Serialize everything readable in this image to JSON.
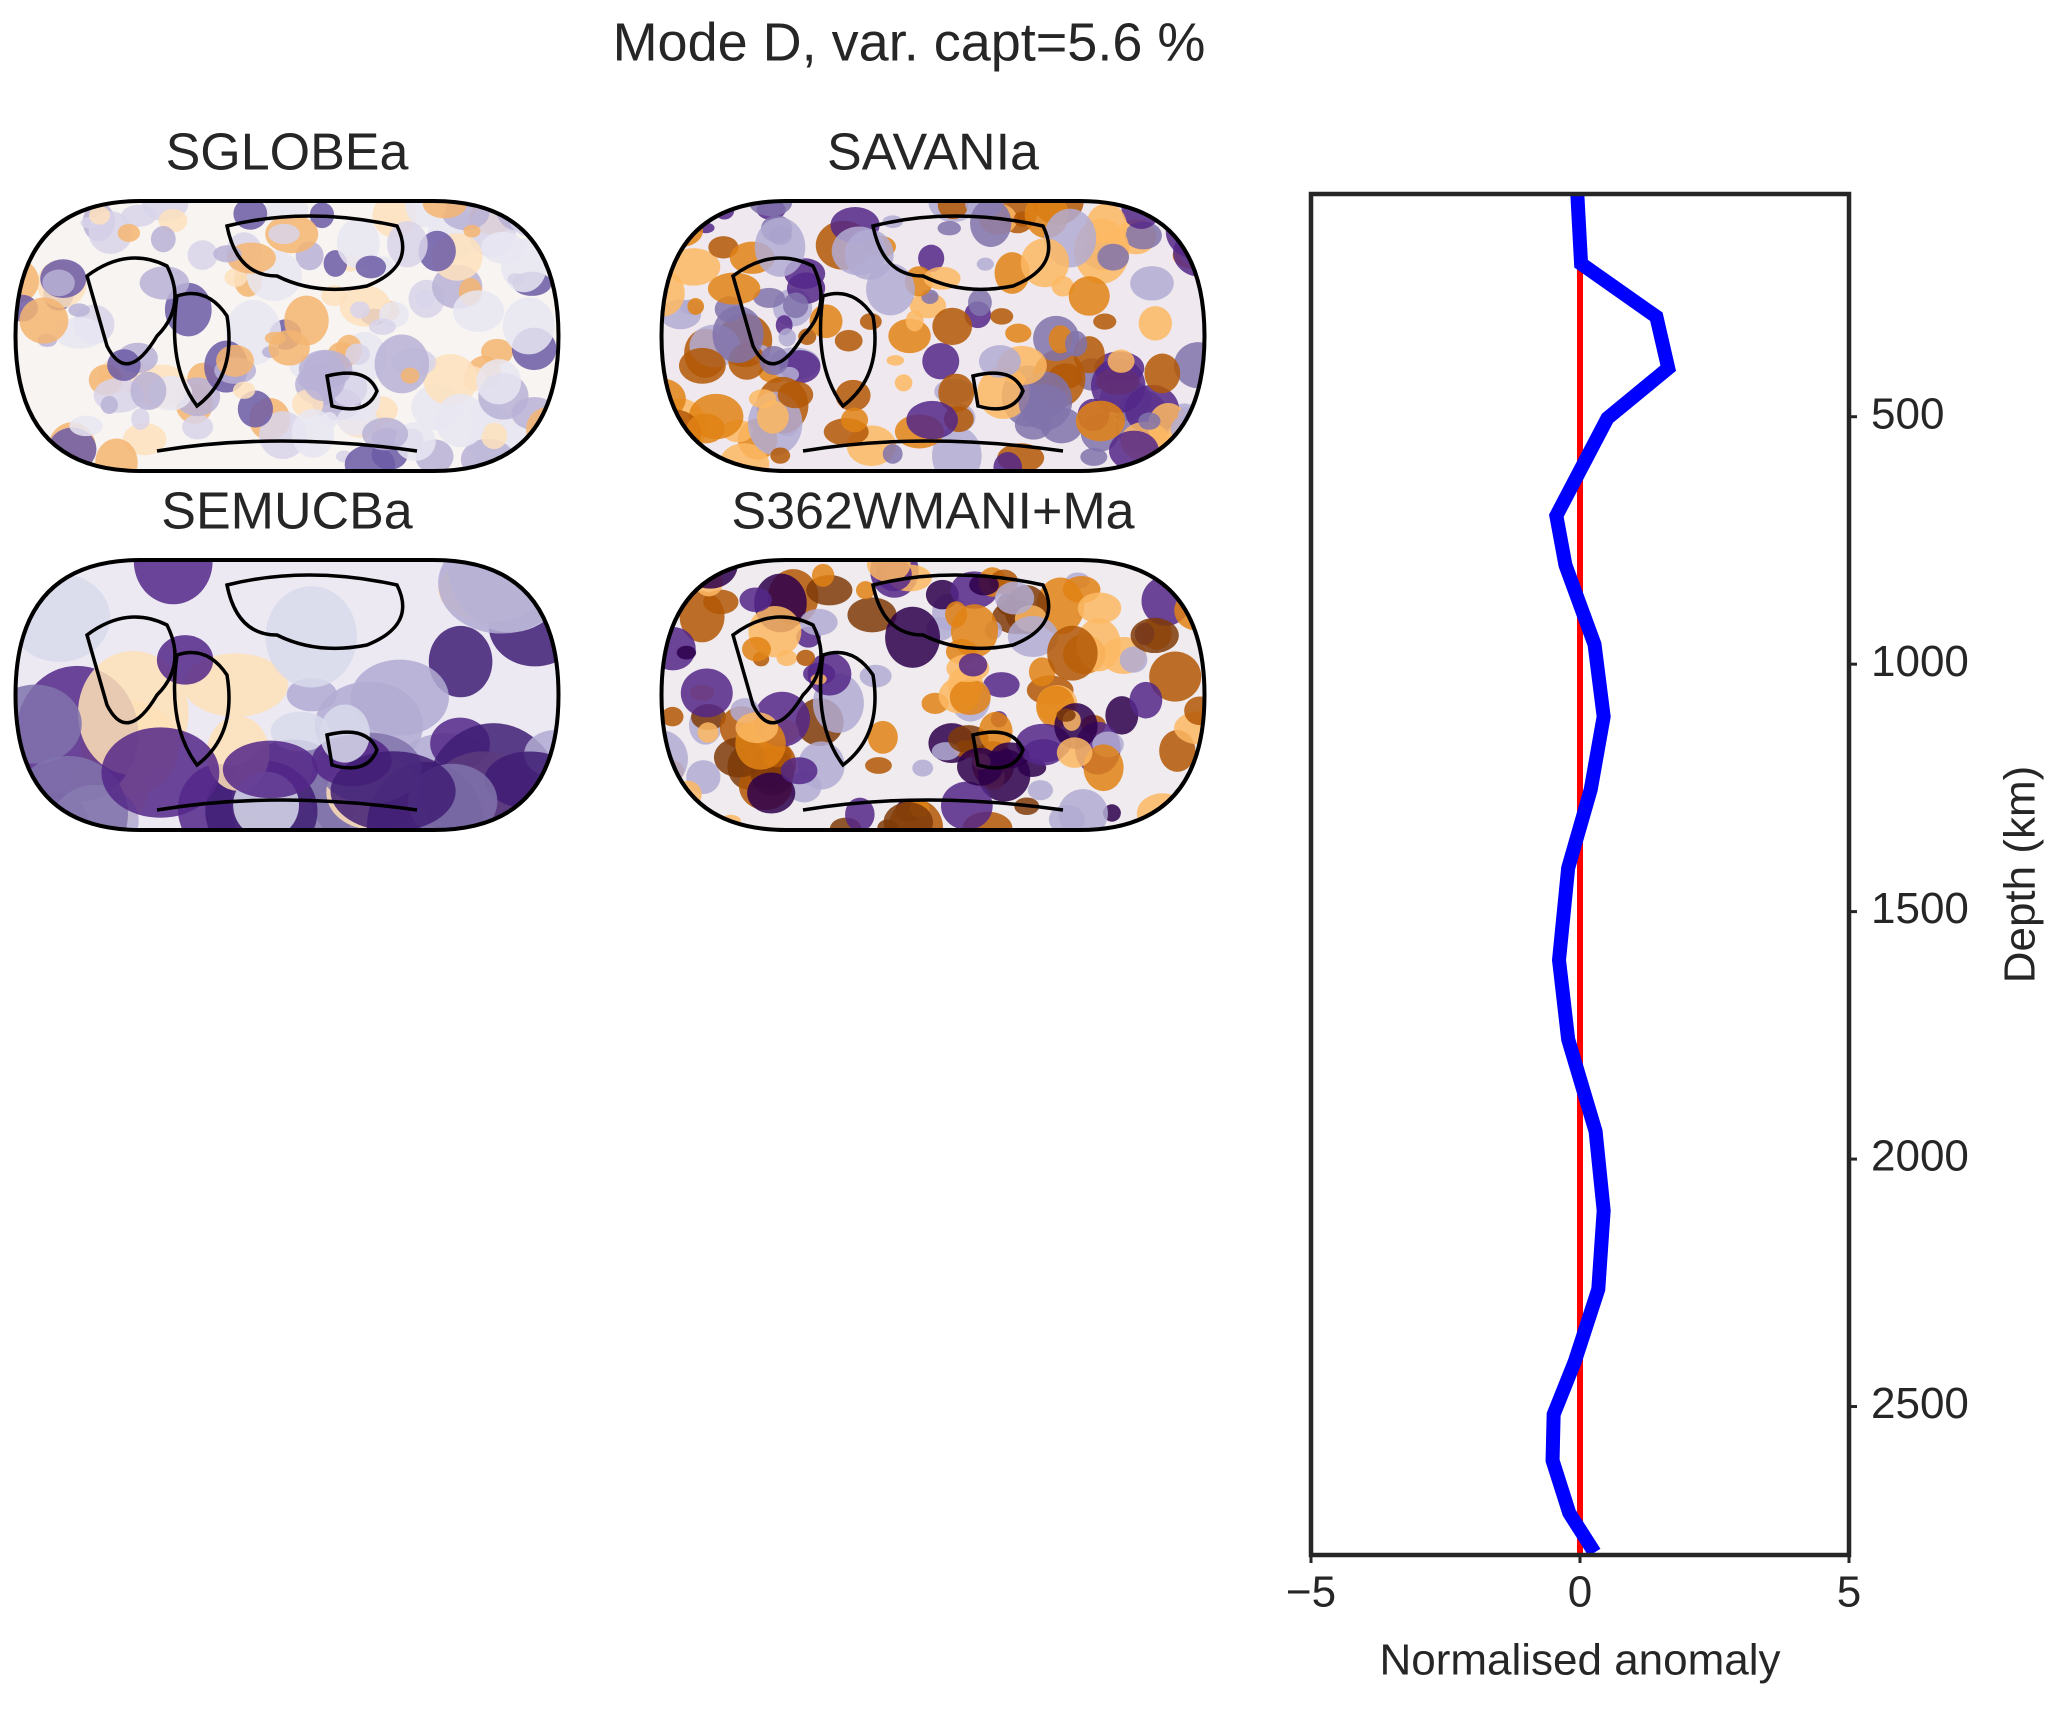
{
  "chart_data": {
    "type": "line",
    "title": "Mode D, var. capt=5.6 %",
    "x_label": "Normalised anomaly",
    "y_label": "Depth (km)",
    "y": [
      50,
      191,
      298,
      402,
      503,
      700,
      800,
      960,
      1106,
      1253,
      1412,
      1598,
      1758,
      1944,
      2104,
      2263,
      2410,
      2516,
      2609,
      2715,
      2795
    ],
    "series": [
      {
        "color": "#0000ff",
        "values": [
          -0.05,
          0.02,
          1.42,
          1.64,
          0.51,
          -0.44,
          -0.27,
          0.27,
          0.44,
          0.2,
          -0.22,
          -0.39,
          -0.22,
          0.29,
          0.44,
          0.34,
          -0.1,
          -0.49,
          -0.51,
          -0.2,
          0.27
        ]
      }
    ],
    "reference_line": {
      "x": 0,
      "color": "#ff0000"
    },
    "xlim": [
      -5,
      5
    ],
    "xticks": [
      {
        "value": -5,
        "label": "−5"
      },
      0,
      5
    ],
    "ylim": [
      50,
      2800
    ],
    "y_inverted": true,
    "yticks": [
      500,
      1000,
      1500,
      2000,
      2500
    ],
    "y_axis_side": "right"
  },
  "maps": [
    {
      "title": "SGLOBEa"
    },
    {
      "title": "SAVANIa"
    },
    {
      "title": "SEMUCBa"
    },
    {
      "title": "S362WMANI+Ma"
    }
  ]
}
